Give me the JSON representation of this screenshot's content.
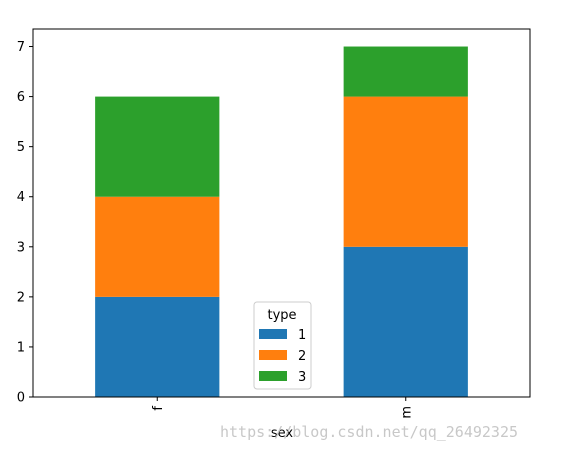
{
  "chart_data": {
    "type": "bar",
    "stacked": true,
    "categories": [
      "f",
      "m"
    ],
    "series": [
      {
        "name": "1",
        "values": [
          2,
          3
        ],
        "color": "#1f77b4"
      },
      {
        "name": "2",
        "values": [
          2,
          3
        ],
        "color": "#ff7f0e"
      },
      {
        "name": "3",
        "values": [
          2,
          1
        ],
        "color": "#2ca02c"
      }
    ],
    "xlabel": "sex",
    "ylabel": "",
    "ylim": [
      0,
      7.35
    ],
    "yticks": [
      0,
      1,
      2,
      3,
      4,
      5,
      6,
      7
    ],
    "legend": {
      "title": "type",
      "placement": "lower center"
    },
    "grid": false
  },
  "watermark": "https://blog.csdn.net/qq_26492325"
}
